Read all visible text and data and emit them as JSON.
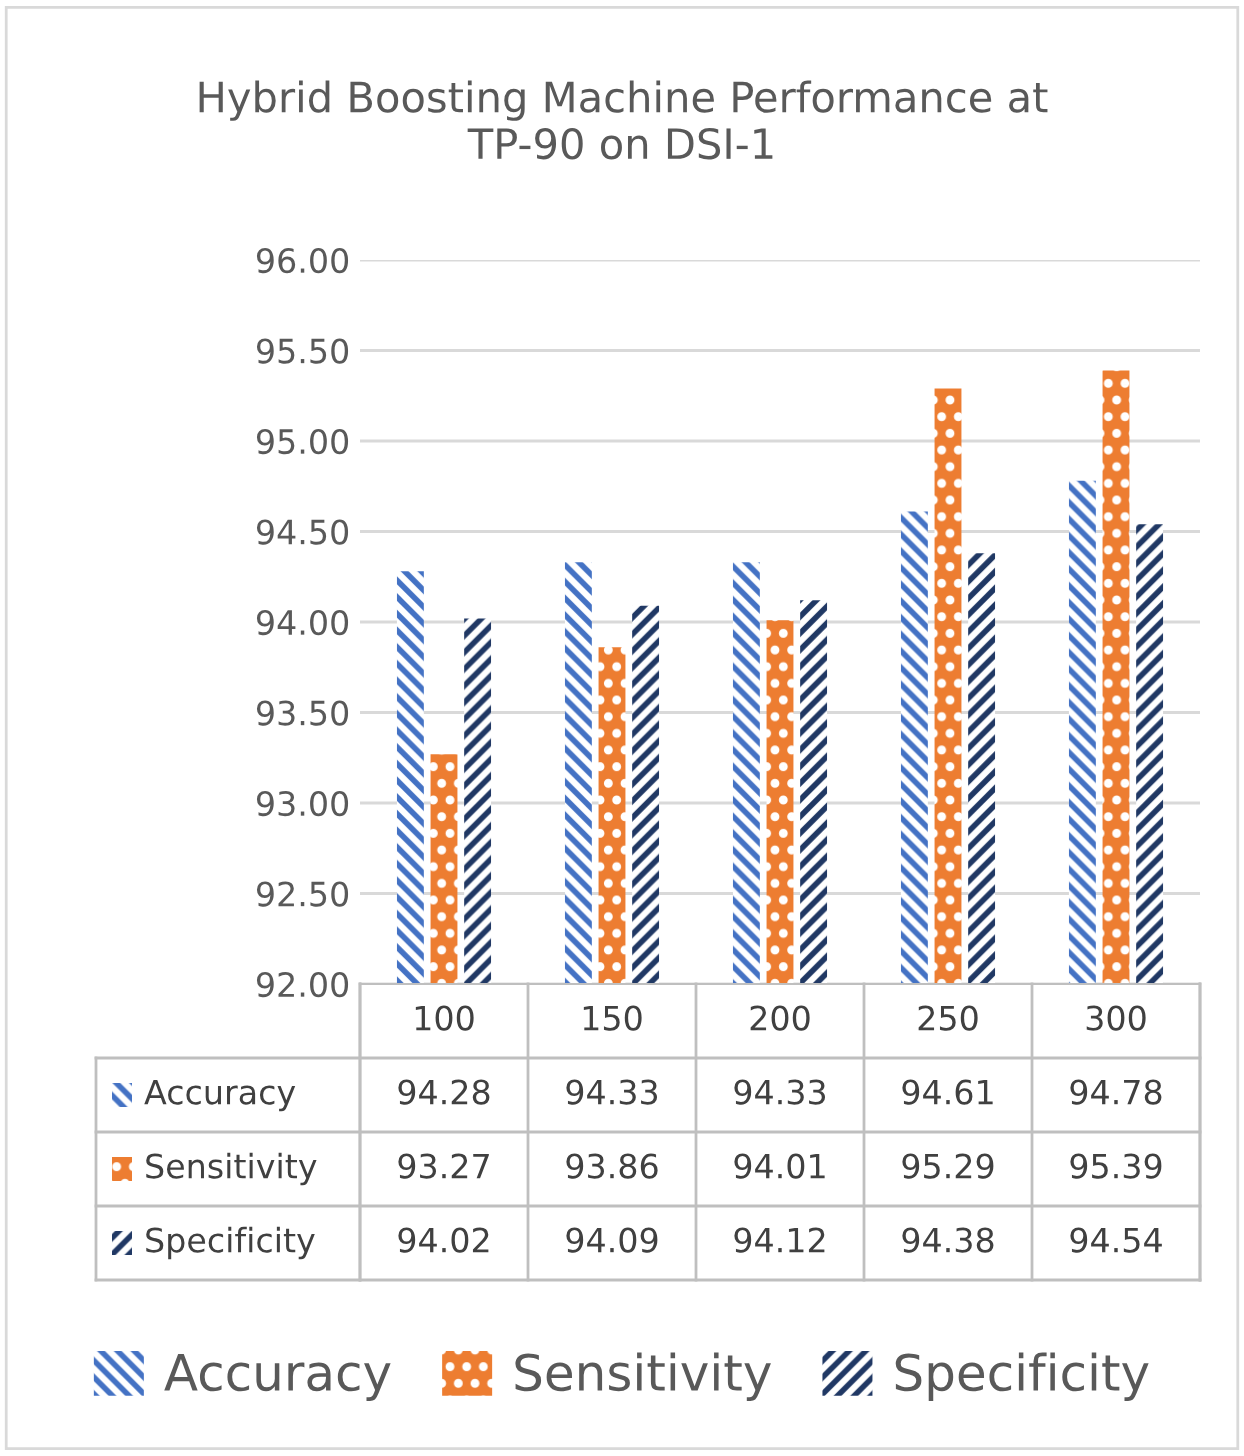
{
  "chart_data": {
    "type": "bar",
    "title": "Hybrid Boosting Machine Performance at\nTP-90 on DSI-1",
    "categories": [
      "100",
      "150",
      "200",
      "250",
      "300"
    ],
    "series": [
      {
        "name": "Accuracy",
        "color": "#4472c4",
        "values": [
          94.28,
          94.33,
          94.33,
          94.61,
          94.78
        ]
      },
      {
        "name": "Sensitivity",
        "color": "#ed7d31",
        "values": [
          93.27,
          93.86,
          94.01,
          95.29,
          95.39
        ]
      },
      {
        "name": "Specificity",
        "color": "#203864",
        "values": [
          94.02,
          94.09,
          94.12,
          94.38,
          94.54
        ]
      }
    ],
    "ylim": [
      92,
      96
    ],
    "yticks": [
      {
        "value": 92,
        "label": "92.00"
      },
      {
        "value": 92.5,
        "label": "92.50"
      },
      {
        "value": 93,
        "label": "93.00"
      },
      {
        "value": 93.5,
        "label": "93.50"
      },
      {
        "value": 94,
        "label": "94.00"
      },
      {
        "value": 94.5,
        "label": "94.50"
      },
      {
        "value": 95,
        "label": "95.00"
      },
      {
        "value": 95.5,
        "label": "95.50"
      },
      {
        "value": 96,
        "label": "96.00"
      }
    ],
    "grid": "y",
    "data_labels": true,
    "legend": "bottom"
  }
}
